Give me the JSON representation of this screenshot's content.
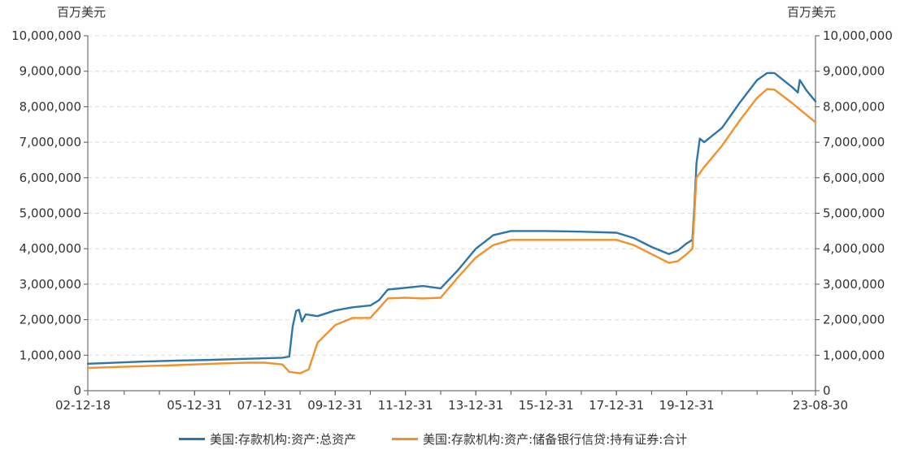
{
  "chart_data": {
    "type": "line",
    "unit_left": "百万美元",
    "unit_right": "百万美元",
    "ylim": [
      0,
      10000000
    ],
    "yticks": [
      0,
      1000000,
      2000000,
      3000000,
      4000000,
      5000000,
      6000000,
      7000000,
      8000000,
      9000000,
      10000000
    ],
    "ytick_labels": [
      "0",
      "1,000,000",
      "2,000,000",
      "3,000,000",
      "4,000,000",
      "5,000,000",
      "6,000,000",
      "7,000,000",
      "8,000,000",
      "9,000,000",
      "10,000,000"
    ],
    "xlim": [
      "2002-12-18",
      "2023-08-30"
    ],
    "xtick_labels": [
      {
        "date": "2002-12-18",
        "label": "02-12-18"
      },
      {
        "date": "2005-12-31",
        "label": "05-12-31"
      },
      {
        "date": "2007-12-31",
        "label": "07-12-31"
      },
      {
        "date": "2009-12-31",
        "label": "09-12-31"
      },
      {
        "date": "2011-12-31",
        "label": "11-12-31"
      },
      {
        "date": "2013-12-31",
        "label": "13-12-31"
      },
      {
        "date": "2015-12-31",
        "label": "15-12-31"
      },
      {
        "date": "2017-12-31",
        "label": "17-12-31"
      },
      {
        "date": "2019-12-31",
        "label": "19-12-31"
      },
      {
        "date": "2023-08-30",
        "label": "23-08-30"
      }
    ],
    "grid": true,
    "legend_position": "bottom",
    "series": [
      {
        "name": "美国:存款机构:资产:总资产",
        "color": "#2e75a8",
        "points": [
          [
            "2002-12-18",
            760000
          ],
          [
            "2003-06-30",
            780000
          ],
          [
            "2004-06-30",
            820000
          ],
          [
            "2005-06-30",
            850000
          ],
          [
            "2006-06-30",
            870000
          ],
          [
            "2007-06-30",
            900000
          ],
          [
            "2008-06-30",
            930000
          ],
          [
            "2008-09-10",
            960000
          ],
          [
            "2008-10-15",
            1800000
          ],
          [
            "2008-11-20",
            2250000
          ],
          [
            "2008-12-20",
            2280000
          ],
          [
            "2009-01-20",
            1950000
          ],
          [
            "2009-03-01",
            2150000
          ],
          [
            "2009-06-30",
            2100000
          ],
          [
            "2009-12-31",
            2260000
          ],
          [
            "2010-06-30",
            2350000
          ],
          [
            "2010-12-31",
            2400000
          ],
          [
            "2011-03-31",
            2550000
          ],
          [
            "2011-06-30",
            2850000
          ],
          [
            "2011-12-31",
            2900000
          ],
          [
            "2012-06-30",
            2950000
          ],
          [
            "2012-12-31",
            2880000
          ],
          [
            "2013-06-30",
            3400000
          ],
          [
            "2013-12-31",
            4000000
          ],
          [
            "2014-06-30",
            4380000
          ],
          [
            "2014-12-31",
            4500000
          ],
          [
            "2015-06-30",
            4500000
          ],
          [
            "2015-12-31",
            4500000
          ],
          [
            "2016-12-31",
            4480000
          ],
          [
            "2017-12-31",
            4450000
          ],
          [
            "2018-06-30",
            4300000
          ],
          [
            "2018-12-31",
            4050000
          ],
          [
            "2019-06-30",
            3850000
          ],
          [
            "2019-09-30",
            3950000
          ],
          [
            "2019-12-31",
            4150000
          ],
          [
            "2020-02-28",
            4250000
          ],
          [
            "2020-03-20",
            5200000
          ],
          [
            "2020-04-10",
            6400000
          ],
          [
            "2020-05-15",
            7100000
          ],
          [
            "2020-06-30",
            7000000
          ],
          [
            "2020-12-31",
            7400000
          ],
          [
            "2021-06-30",
            8100000
          ],
          [
            "2021-12-31",
            8750000
          ],
          [
            "2022-04-15",
            8950000
          ],
          [
            "2022-06-30",
            8950000
          ],
          [
            "2022-12-31",
            8550000
          ],
          [
            "2023-02-28",
            8400000
          ],
          [
            "2023-03-20",
            8750000
          ],
          [
            "2023-05-31",
            8450000
          ],
          [
            "2023-08-30",
            8150000
          ]
        ]
      },
      {
        "name": "美国:存款机构:资产:储备银行信贷:持有证券:合计",
        "color": "#f0922b",
        "points": [
          [
            "2002-12-18",
            640000
          ],
          [
            "2003-06-30",
            660000
          ],
          [
            "2004-06-30",
            690000
          ],
          [
            "2005-06-30",
            720000
          ],
          [
            "2006-06-30",
            760000
          ],
          [
            "2007-06-30",
            790000
          ],
          [
            "2007-12-31",
            790000
          ],
          [
            "2008-06-30",
            740000
          ],
          [
            "2008-09-10",
            530000
          ],
          [
            "2008-12-31",
            490000
          ],
          [
            "2009-03-31",
            600000
          ],
          [
            "2009-06-30",
            1350000
          ],
          [
            "2009-12-31",
            1850000
          ],
          [
            "2010-06-30",
            2050000
          ],
          [
            "2010-12-31",
            2050000
          ],
          [
            "2011-06-30",
            2600000
          ],
          [
            "2011-12-31",
            2620000
          ],
          [
            "2012-06-30",
            2600000
          ],
          [
            "2012-12-31",
            2620000
          ],
          [
            "2013-06-30",
            3200000
          ],
          [
            "2013-12-31",
            3750000
          ],
          [
            "2014-06-30",
            4100000
          ],
          [
            "2014-12-31",
            4250000
          ],
          [
            "2015-06-30",
            4250000
          ],
          [
            "2015-12-31",
            4250000
          ],
          [
            "2016-12-31",
            4250000
          ],
          [
            "2017-12-31",
            4250000
          ],
          [
            "2018-06-30",
            4100000
          ],
          [
            "2018-12-31",
            3850000
          ],
          [
            "2019-06-30",
            3600000
          ],
          [
            "2019-09-30",
            3650000
          ],
          [
            "2019-12-31",
            3850000
          ],
          [
            "2020-02-28",
            4000000
          ],
          [
            "2020-03-20",
            5000000
          ],
          [
            "2020-04-10",
            6000000
          ],
          [
            "2020-06-30",
            6300000
          ],
          [
            "2020-12-31",
            6900000
          ],
          [
            "2021-06-30",
            7600000
          ],
          [
            "2021-12-31",
            8250000
          ],
          [
            "2022-04-15",
            8500000
          ],
          [
            "2022-06-30",
            8480000
          ],
          [
            "2022-12-31",
            8100000
          ],
          [
            "2023-03-31",
            7900000
          ],
          [
            "2023-08-30",
            7560000
          ]
        ]
      }
    ]
  }
}
